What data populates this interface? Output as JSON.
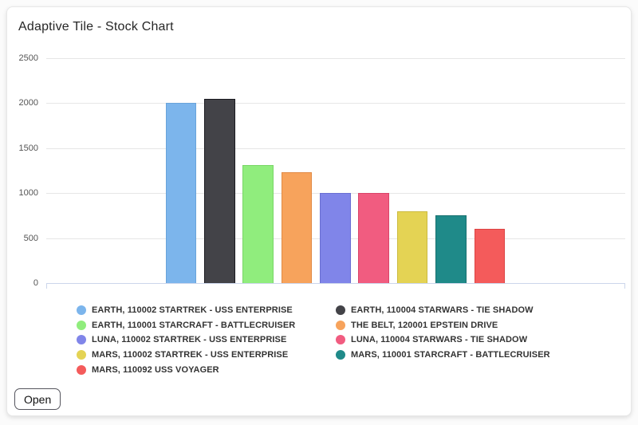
{
  "card": {
    "title": "Adaptive Tile - Stock Chart",
    "open_button_label": "Open"
  },
  "chart_data": {
    "type": "bar",
    "title": "Adaptive Tile - Stock Chart",
    "categories": [
      ""
    ],
    "series": [
      {
        "name": "EARTH, 110002 STARTREK - USS ENTERPRISE",
        "value": 2000,
        "color": "#7cb5ec",
        "border": "#69a3da"
      },
      {
        "name": "EARTH, 110004 STARWARS - TIE SHADOW",
        "value": 2050,
        "color": "#434348",
        "border": "#1a1a20"
      },
      {
        "name": "EARTH, 110001 STARCRAFT - BATTLECRUISER",
        "value": 1310,
        "color": "#90ed7d",
        "border": "#79d667"
      },
      {
        "name": "THE BELT, 120001 EPSTEIN DRIVE",
        "value": 1230,
        "color": "#f7a35c",
        "border": "#e18a45"
      },
      {
        "name": "LUNA, 110002 STARTREK - USS ENTERPRISE",
        "value": 1000,
        "color": "#8085e9",
        "border": "#6a6fd2"
      },
      {
        "name": "LUNA, 110004 STARWARS - TIE SHADOW",
        "value": 1000,
        "color": "#f15c80",
        "border": "#d94569"
      },
      {
        "name": "MARS, 110002 STARTREK - USS ENTERPRISE",
        "value": 800,
        "color": "#e4d354",
        "border": "#ccbb3e"
      },
      {
        "name": "MARS, 110001 STARCRAFT - BATTLECRUISER",
        "value": 750,
        "color": "#1f8a89",
        "border": "#17706f"
      },
      {
        "name": "MARS, 110092 USS VOYAGER",
        "value": 600,
        "color": "#f45b5b",
        "border": "#dc4444"
      }
    ],
    "ylabel": "",
    "xlabel": "",
    "ylim": [
      0,
      2500
    ],
    "yticks": [
      0,
      500,
      1000,
      1500,
      2000,
      2500
    ],
    "grid": true,
    "legend_position": "bottom",
    "axis_line_color": "#ccd6eb",
    "grid_color": "#e6e6e6"
  }
}
